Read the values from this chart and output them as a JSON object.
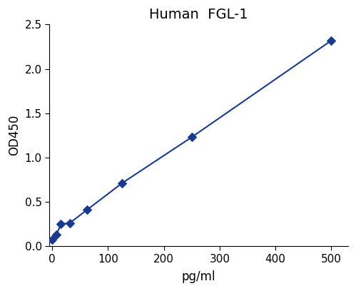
{
  "x": [
    0,
    7.8,
    15.6,
    31.25,
    62.5,
    125,
    250,
    500
  ],
  "y": [
    0.07,
    0.13,
    0.25,
    0.26,
    0.41,
    0.71,
    1.23,
    2.32
  ],
  "line_color": "#1a3a8c",
  "marker_color": "#1a3a8c",
  "marker": "D",
  "marker_size": 6,
  "line_width": 1.5,
  "title": "Human  FGL-1",
  "xlabel": "pg/ml",
  "ylabel": "OD450",
  "xlim": [
    -5,
    530
  ],
  "ylim": [
    0,
    2.5
  ],
  "xticks": [
    0,
    100,
    200,
    300,
    400,
    500
  ],
  "yticks": [
    0,
    0.5,
    1.0,
    1.5,
    2.0,
    2.5
  ],
  "title_fontsize": 14,
  "axis_label_fontsize": 12,
  "tick_fontsize": 11,
  "title_color": "#000000",
  "text_color": "#000000",
  "background_color": "#ffffff"
}
